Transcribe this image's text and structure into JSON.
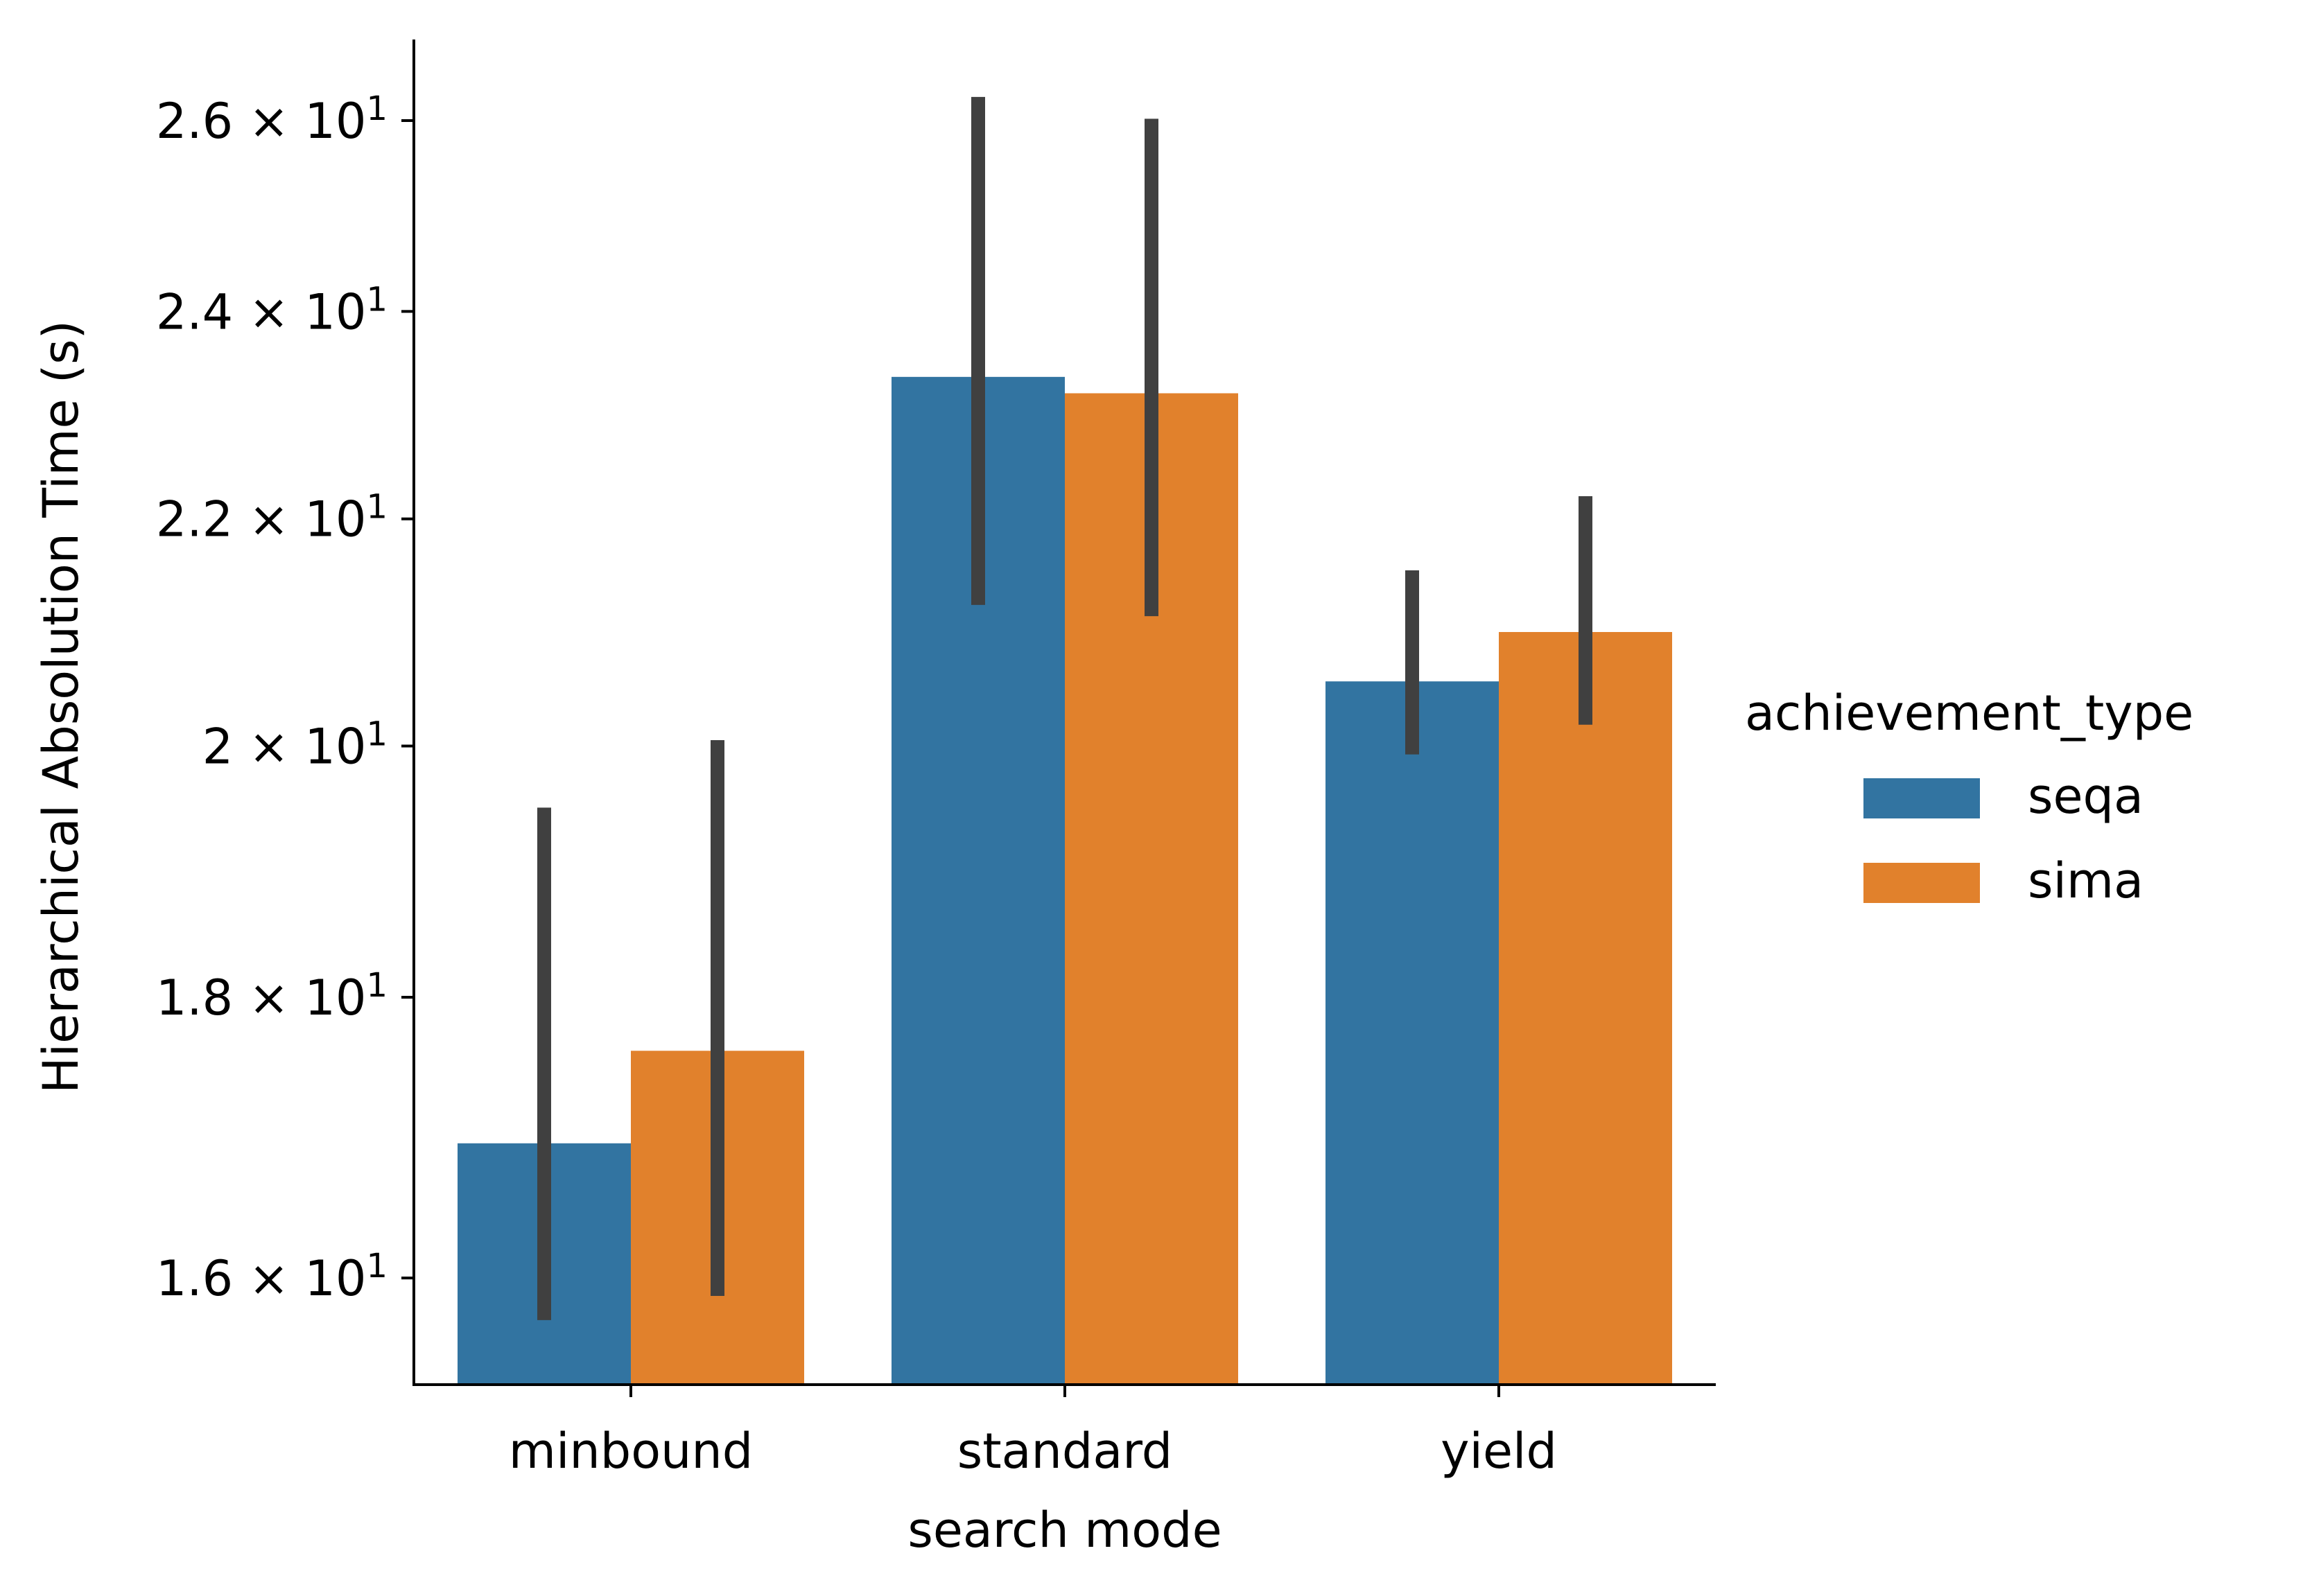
{
  "chart_data": {
    "type": "bar",
    "scale": "log",
    "xlabel": "search mode",
    "ylabel": "Hierarchical Absolution Time (s)",
    "categories": [
      "minbound",
      "standard",
      "yield"
    ],
    "ylim": [
      15.3,
      26.9
    ],
    "yticks": [
      {
        "value": 16,
        "mantissa": "1.6"
      },
      {
        "value": 18,
        "mantissa": "1.8"
      },
      {
        "value": 20,
        "mantissa": "2"
      },
      {
        "value": 22,
        "mantissa": "2.2"
      },
      {
        "value": 24,
        "mantissa": "2.4"
      },
      {
        "value": 26,
        "mantissa": "2.6"
      }
    ],
    "tick_times": "×",
    "tick_base": "10",
    "tick_exponent": "1",
    "legend": {
      "title": "achievement_type",
      "placement": "center-right"
    },
    "series": [
      {
        "name": "seqa",
        "color": "#3274a1",
        "values": [
          16.93,
          23.35,
          20.55
        ],
        "ci_low": [
          15.72,
          21.22,
          19.93
        ],
        "ci_high": [
          19.49,
          26.26,
          21.53
        ]
      },
      {
        "name": "sima",
        "color": "#e1812c",
        "values": [
          17.6,
          23.19,
          20.98
        ],
        "ci_low": [
          15.88,
          21.12,
          20.18
        ],
        "ci_high": [
          20.05,
          26.02,
          22.21
        ]
      }
    ],
    "errorbar_color": "#404040",
    "grid": false
  }
}
